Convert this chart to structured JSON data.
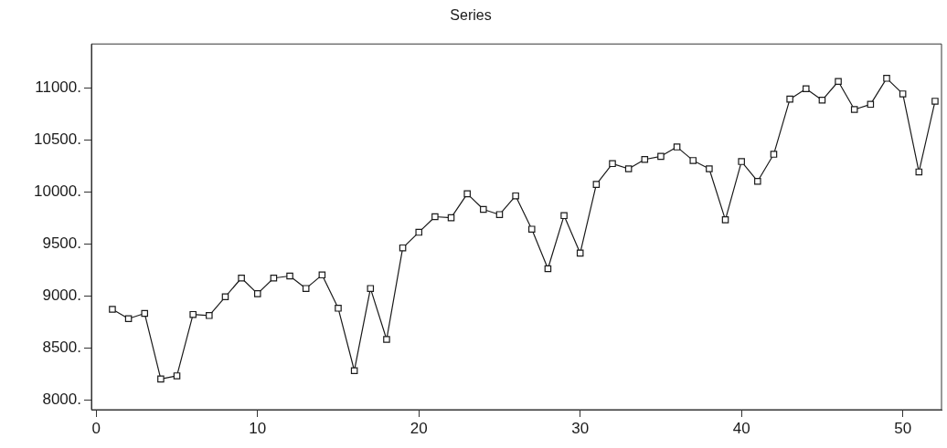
{
  "chart_data": {
    "type": "line",
    "title": "Series",
    "x": [
      1,
      2,
      3,
      4,
      5,
      6,
      7,
      8,
      9,
      10,
      11,
      12,
      13,
      14,
      15,
      16,
      17,
      18,
      19,
      20,
      21,
      22,
      23,
      24,
      25,
      26,
      27,
      28,
      29,
      30,
      31,
      32,
      33,
      34,
      35,
      36,
      37,
      38,
      39,
      40,
      41,
      42,
      43,
      44,
      45,
      46,
      47,
      48,
      49,
      50,
      51,
      52
    ],
    "values": [
      8870,
      8780,
      8830,
      8200,
      8230,
      8820,
      8810,
      8990,
      9170,
      9020,
      9170,
      9190,
      9070,
      9200,
      8880,
      8280,
      9070,
      8580,
      9460,
      9610,
      9760,
      9750,
      9980,
      9830,
      9780,
      9960,
      9640,
      9260,
      9770,
      9410,
      10070,
      10270,
      10220,
      10310,
      10340,
      10430,
      10300,
      10220,
      9730,
      10290,
      10100,
      10360,
      10890,
      10990,
      10880,
      11060,
      10790,
      10840,
      11090,
      10940,
      10190,
      10870
    ],
    "color": "#1a1a1a",
    "marker": "square",
    "line_style": "solid",
    "grid": false,
    "legend": false,
    "xlim": [
      -0.3,
      52.4
    ],
    "xticks": [
      0,
      10,
      20,
      30,
      40,
      50
    ],
    "ylim": [
      7905,
      11420
    ],
    "yticks": [
      {
        "value": 8000,
        "label": "8000."
      },
      {
        "value": 8500,
        "label": "8500."
      },
      {
        "value": 9000,
        "label": "9000."
      },
      {
        "value": 9500,
        "label": "9500."
      },
      {
        "value": 10000,
        "label": "10000."
      },
      {
        "value": 10500,
        "label": "10500."
      },
      {
        "value": 11000,
        "label": "11000."
      }
    ]
  }
}
